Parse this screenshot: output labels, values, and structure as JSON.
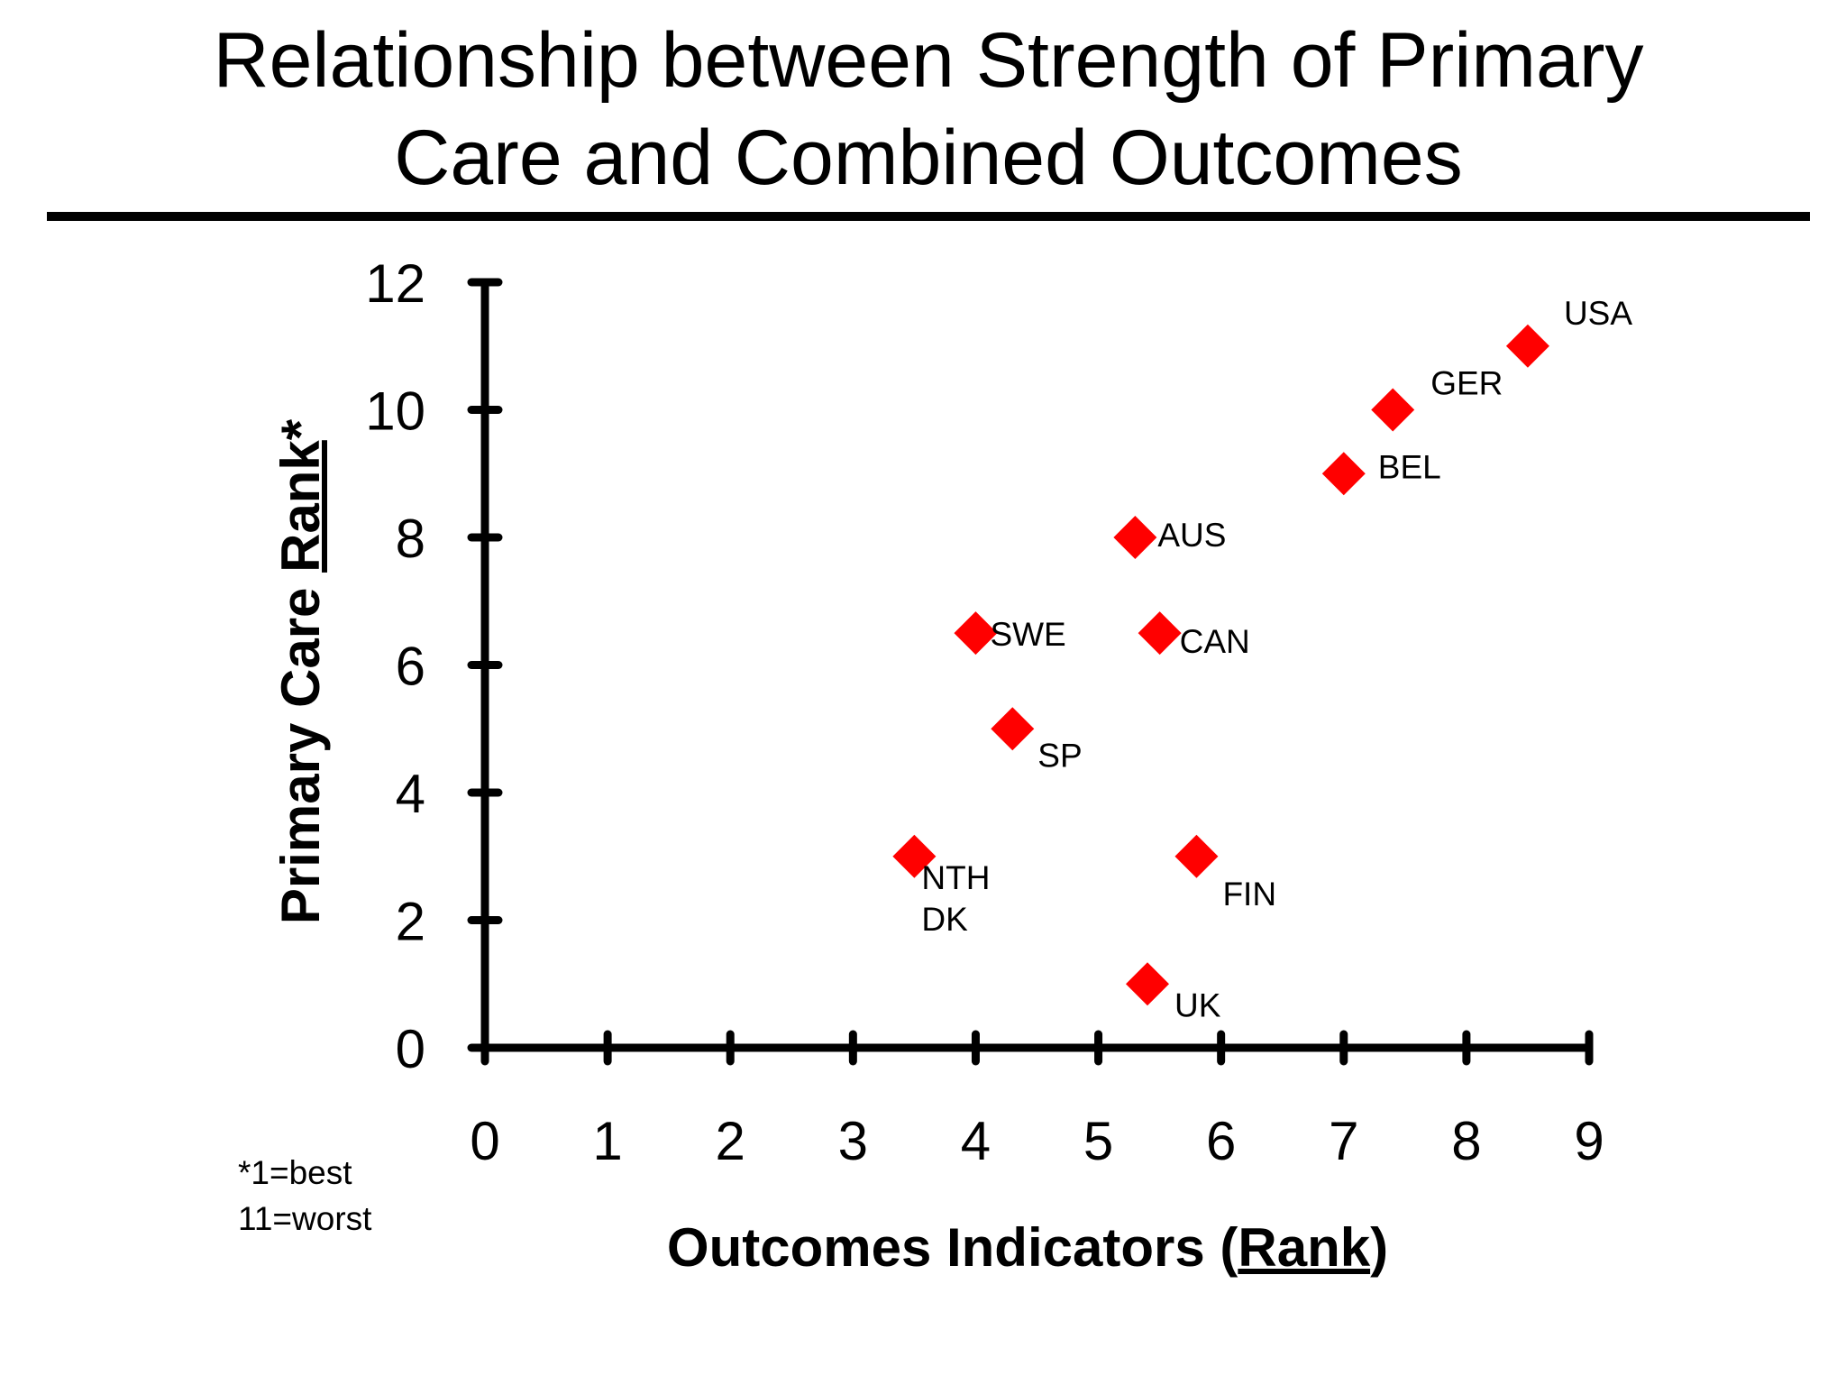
{
  "chart_data": {
    "type": "scatter",
    "title_lines": [
      "Relationship between Strength of Primary",
      "Care and Combined Outcomes"
    ],
    "xlabel": {
      "prefix": "Outcomes Indicators (",
      "underlined": "Rank",
      "suffix": ")"
    },
    "ylabel": {
      "prefix": "Primary Care ",
      "underlined": "Rank",
      "suffix": "*"
    },
    "xlim": [
      0,
      9
    ],
    "ylim": [
      0,
      12
    ],
    "x_ticks": [
      "0",
      "1",
      "2",
      "3",
      "4",
      "5",
      "6",
      "7",
      "8",
      "9"
    ],
    "y_ticks": [
      "0",
      "2",
      "4",
      "6",
      "8",
      "10",
      "12"
    ],
    "footnote_lines": [
      "*1=best",
      "11=worst"
    ],
    "marker_color": "#ff0000",
    "marker_shape": "diamond",
    "points": [
      {
        "label": "USA",
        "x": 8.5,
        "y": 11
      },
      {
        "label": "GER",
        "x": 7.4,
        "y": 10
      },
      {
        "label": "BEL",
        "x": 7.0,
        "y": 9
      },
      {
        "label": "AUS",
        "x": 5.3,
        "y": 8
      },
      {
        "label": "SWE",
        "x": 4.0,
        "y": 6.5
      },
      {
        "label": "CAN",
        "x": 5.5,
        "y": 6.5
      },
      {
        "label": "SP",
        "x": 4.3,
        "y": 5
      },
      {
        "label": "NTH\nDK",
        "x": 3.5,
        "y": 3
      },
      {
        "label": "FIN",
        "x": 5.8,
        "y": 3
      },
      {
        "label": "UK",
        "x": 5.4,
        "y": 1
      }
    ]
  }
}
